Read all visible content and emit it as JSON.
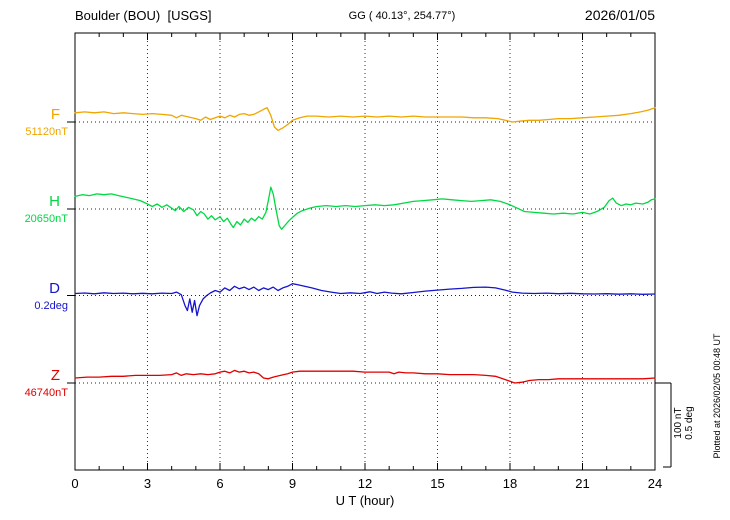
{
  "header": {
    "title": "Boulder (BOU)  [USGS]",
    "coords": "GG ( 40.13°, 254.77°)",
    "date": "2026/01/05"
  },
  "footer": {
    "plotted_at": "Plotted at 2026/02/05 00:48 UT"
  },
  "chart_data": {
    "type": "line",
    "title": "Boulder (BOU) [USGS] magnetogram",
    "xlabel": "U T (hour)",
    "xlim": [
      0,
      24
    ],
    "xticks": [
      0,
      3,
      6,
      9,
      12,
      15,
      18,
      21,
      24
    ],
    "grid": "dotted-vertical-at-xticks",
    "legend_position": "left-of-traces",
    "scale_bar": {
      "label_nT": "100 nT",
      "label_deg": "0.5 deg",
      "nT": 100,
      "deg": 0.5
    },
    "series": [
      {
        "name": "F",
        "baseline_label": "51120nT",
        "baseline_value": 51120,
        "units": "nT",
        "color": "#f0a500",
        "points": [
          [
            0,
            11
          ],
          [
            0.4,
            12
          ],
          [
            0.8,
            11
          ],
          [
            1.2,
            12
          ],
          [
            1.6,
            10
          ],
          [
            2,
            11
          ],
          [
            2.4,
            10
          ],
          [
            2.8,
            9
          ],
          [
            3.2,
            10
          ],
          [
            3.6,
            9
          ],
          [
            4,
            8
          ],
          [
            4.2,
            5
          ],
          [
            4.4,
            8
          ],
          [
            4.7,
            6
          ],
          [
            5,
            4
          ],
          [
            5.2,
            2
          ],
          [
            5.4,
            6
          ],
          [
            5.6,
            3
          ],
          [
            5.8,
            5
          ],
          [
            6,
            7
          ],
          [
            6.2,
            5
          ],
          [
            6.4,
            8
          ],
          [
            6.6,
            6
          ],
          [
            6.8,
            9
          ],
          [
            7,
            10
          ],
          [
            7.2,
            8
          ],
          [
            7.4,
            9
          ],
          [
            7.6,
            12
          ],
          [
            7.8,
            15
          ],
          [
            7.95,
            17
          ],
          [
            8.1,
            8
          ],
          [
            8.25,
            -6
          ],
          [
            8.4,
            -10
          ],
          [
            8.6,
            -7
          ],
          [
            8.8,
            -3
          ],
          [
            9,
            2
          ],
          [
            9.3,
            5
          ],
          [
            9.6,
            7
          ],
          [
            10,
            7
          ],
          [
            10.5,
            6
          ],
          [
            11,
            7
          ],
          [
            11.5,
            6
          ],
          [
            12,
            7
          ],
          [
            12.5,
            6
          ],
          [
            13,
            7
          ],
          [
            13.5,
            6
          ],
          [
            14,
            7
          ],
          [
            14.5,
            6
          ],
          [
            15,
            6
          ],
          [
            15.5,
            6
          ],
          [
            16,
            6
          ],
          [
            16.5,
            5
          ],
          [
            17,
            5
          ],
          [
            17.5,
            4
          ],
          [
            17.8,
            2
          ],
          [
            18.1,
            0
          ],
          [
            18.4,
            1
          ],
          [
            18.8,
            2
          ],
          [
            19.2,
            2
          ],
          [
            19.6,
            3
          ],
          [
            20,
            4
          ],
          [
            20.5,
            4
          ],
          [
            21,
            5
          ],
          [
            21.5,
            6
          ],
          [
            22,
            7
          ],
          [
            22.5,
            8
          ],
          [
            23,
            10
          ],
          [
            23.4,
            12
          ],
          [
            23.7,
            14
          ],
          [
            24,
            17
          ]
        ]
      },
      {
        "name": "H",
        "baseline_label": "20650nT",
        "baseline_value": 20650,
        "units": "nT",
        "color": "#00d944",
        "points": [
          [
            0,
            15
          ],
          [
            0.3,
            17
          ],
          [
            0.6,
            16
          ],
          [
            0.9,
            18
          ],
          [
            1.2,
            17
          ],
          [
            1.5,
            18
          ],
          [
            1.8,
            16
          ],
          [
            2.1,
            14
          ],
          [
            2.4,
            12
          ],
          [
            2.7,
            10
          ],
          [
            3,
            6
          ],
          [
            3.2,
            3
          ],
          [
            3.4,
            6
          ],
          [
            3.6,
            2
          ],
          [
            3.8,
            5
          ],
          [
            4,
            1
          ],
          [
            4.15,
            -2
          ],
          [
            4.3,
            3
          ],
          [
            4.5,
            -3
          ],
          [
            4.7,
            2
          ],
          [
            4.9,
            -1
          ],
          [
            5.05,
            -8
          ],
          [
            5.2,
            -3
          ],
          [
            5.35,
            -6
          ],
          [
            5.5,
            -12
          ],
          [
            5.65,
            -8
          ],
          [
            5.8,
            -13
          ],
          [
            6,
            -9
          ],
          [
            6.15,
            -15
          ],
          [
            6.3,
            -11
          ],
          [
            6.45,
            -18
          ],
          [
            6.55,
            -22
          ],
          [
            6.7,
            -15
          ],
          [
            6.85,
            -19
          ],
          [
            7,
            -12
          ],
          [
            7.15,
            -16
          ],
          [
            7.3,
            -11
          ],
          [
            7.45,
            -14
          ],
          [
            7.6,
            -9
          ],
          [
            7.75,
            -12
          ],
          [
            7.9,
            -4
          ],
          [
            8,
            10
          ],
          [
            8.1,
            26
          ],
          [
            8.2,
            18
          ],
          [
            8.3,
            2
          ],
          [
            8.45,
            -20
          ],
          [
            8.55,
            -24
          ],
          [
            8.7,
            -19
          ],
          [
            8.85,
            -14
          ],
          [
            9,
            -10
          ],
          [
            9.2,
            -5
          ],
          [
            9.4,
            -2
          ],
          [
            9.7,
            1
          ],
          [
            10,
            3
          ],
          [
            10.4,
            4
          ],
          [
            10.8,
            3
          ],
          [
            11.2,
            4
          ],
          [
            11.6,
            3
          ],
          [
            12,
            4
          ],
          [
            12.4,
            5
          ],
          [
            12.8,
            4
          ],
          [
            13.2,
            5
          ],
          [
            13.6,
            7
          ],
          [
            14,
            9
          ],
          [
            14.4,
            10
          ],
          [
            14.8,
            11
          ],
          [
            15.2,
            12
          ],
          [
            15.6,
            11
          ],
          [
            16,
            10
          ],
          [
            16.4,
            9
          ],
          [
            16.8,
            10
          ],
          [
            17.2,
            11
          ],
          [
            17.6,
            9
          ],
          [
            18,
            5
          ],
          [
            18.3,
            1
          ],
          [
            18.6,
            -3
          ],
          [
            19,
            -4
          ],
          [
            19.4,
            -5
          ],
          [
            19.8,
            -6
          ],
          [
            20.2,
            -5
          ],
          [
            20.6,
            -6
          ],
          [
            21,
            -4
          ],
          [
            21.3,
            -6
          ],
          [
            21.6,
            -3
          ],
          [
            21.9,
            2
          ],
          [
            22.1,
            10
          ],
          [
            22.25,
            13
          ],
          [
            22.4,
            7
          ],
          [
            22.6,
            4
          ],
          [
            22.8,
            6
          ],
          [
            23,
            5
          ],
          [
            23.2,
            7
          ],
          [
            23.5,
            6
          ],
          [
            23.7,
            8
          ],
          [
            23.85,
            11
          ],
          [
            24,
            12
          ]
        ]
      },
      {
        "name": "D",
        "baseline_label": "0.2deg",
        "baseline_value": 0.2,
        "units": "deg",
        "color": "#1515cc",
        "points": [
          [
            0,
            0.012
          ],
          [
            0.4,
            0.015
          ],
          [
            0.8,
            0.01
          ],
          [
            1.2,
            0.016
          ],
          [
            1.6,
            0.012
          ],
          [
            2,
            0.014
          ],
          [
            2.4,
            0.01
          ],
          [
            2.8,
            0.013
          ],
          [
            3.2,
            0.01
          ],
          [
            3.6,
            0.014
          ],
          [
            4,
            0.012
          ],
          [
            4.2,
            0.02
          ],
          [
            4.4,
            0.005
          ],
          [
            4.55,
            -0.06
          ],
          [
            4.65,
            -0.09
          ],
          [
            4.75,
            -0.02
          ],
          [
            4.85,
            -0.1
          ],
          [
            4.95,
            -0.03
          ],
          [
            5.05,
            -0.12
          ],
          [
            5.15,
            -0.06
          ],
          [
            5.3,
            -0.02
          ],
          [
            5.45,
            0
          ],
          [
            5.6,
            0.015
          ],
          [
            5.8,
            0.03
          ],
          [
            6,
            0.02
          ],
          [
            6.2,
            0.045
          ],
          [
            6.4,
            0.03
          ],
          [
            6.6,
            0.055
          ],
          [
            6.8,
            0.04
          ],
          [
            7,
            0.05
          ],
          [
            7.2,
            0.035
          ],
          [
            7.4,
            0.05
          ],
          [
            7.6,
            0.03
          ],
          [
            7.8,
            0.045
          ],
          [
            8,
            0.035
          ],
          [
            8.2,
            0.05
          ],
          [
            8.4,
            0.03
          ],
          [
            8.6,
            0.045
          ],
          [
            8.8,
            0.055
          ],
          [
            9,
            0.07
          ],
          [
            9.2,
            0.065
          ],
          [
            9.5,
            0.055
          ],
          [
            9.8,
            0.045
          ],
          [
            10.2,
            0.03
          ],
          [
            10.6,
            0.02
          ],
          [
            11,
            0.012
          ],
          [
            11.4,
            0.016
          ],
          [
            11.8,
            0.012
          ],
          [
            12.2,
            0.022
          ],
          [
            12.5,
            0.012
          ],
          [
            12.8,
            0.02
          ],
          [
            13.1,
            0.014
          ],
          [
            13.5,
            0.01
          ],
          [
            14,
            0.018
          ],
          [
            14.5,
            0.026
          ],
          [
            15,
            0.032
          ],
          [
            15.5,
            0.038
          ],
          [
            16,
            0.042
          ],
          [
            16.5,
            0.048
          ],
          [
            17,
            0.05
          ],
          [
            17.4,
            0.045
          ],
          [
            17.8,
            0.032
          ],
          [
            18.1,
            0.02
          ],
          [
            18.5,
            0.014
          ],
          [
            19,
            0.012
          ],
          [
            19.5,
            0.014
          ],
          [
            20,
            0.011
          ],
          [
            20.5,
            0.013
          ],
          [
            21,
            0.01
          ],
          [
            21.5,
            0.009
          ],
          [
            22,
            0.011
          ],
          [
            22.5,
            0.008
          ],
          [
            23,
            0.01
          ],
          [
            23.5,
            0.007
          ],
          [
            24,
            0.009
          ]
        ]
      },
      {
        "name": "Z",
        "baseline_label": "46740nT",
        "baseline_value": 46740,
        "units": "nT",
        "color": "#e00000",
        "points": [
          [
            0,
            6
          ],
          [
            0.5,
            7
          ],
          [
            1,
            7
          ],
          [
            1.5,
            8
          ],
          [
            2,
            8
          ],
          [
            2.5,
            9
          ],
          [
            3,
            9
          ],
          [
            3.5,
            9
          ],
          [
            4,
            10
          ],
          [
            4.2,
            12
          ],
          [
            4.4,
            9
          ],
          [
            4.6,
            11
          ],
          [
            4.9,
            10
          ],
          [
            5.2,
            11
          ],
          [
            5.5,
            10
          ],
          [
            5.8,
            11
          ],
          [
            6,
            13
          ],
          [
            6.2,
            14
          ],
          [
            6.4,
            12
          ],
          [
            6.6,
            15
          ],
          [
            6.8,
            13
          ],
          [
            7,
            14
          ],
          [
            7.2,
            12
          ],
          [
            7.4,
            13
          ],
          [
            7.6,
            11
          ],
          [
            7.8,
            6
          ],
          [
            8,
            5
          ],
          [
            8.2,
            7
          ],
          [
            8.5,
            9
          ],
          [
            8.8,
            11
          ],
          [
            9,
            13
          ],
          [
            9.3,
            14
          ],
          [
            9.6,
            14
          ],
          [
            10,
            14
          ],
          [
            10.5,
            14
          ],
          [
            11,
            14
          ],
          [
            11.5,
            14
          ],
          [
            12,
            13
          ],
          [
            12.5,
            13
          ],
          [
            13,
            13
          ],
          [
            13.2,
            11
          ],
          [
            13.4,
            13
          ],
          [
            13.7,
            12
          ],
          [
            14,
            12
          ],
          [
            14.5,
            11
          ],
          [
            15,
            11
          ],
          [
            15.5,
            10
          ],
          [
            16,
            10
          ],
          [
            16.5,
            10
          ],
          [
            17,
            9
          ],
          [
            17.4,
            8
          ],
          [
            17.7,
            5
          ],
          [
            18,
            2
          ],
          [
            18.2,
            0
          ],
          [
            18.5,
            1
          ],
          [
            18.8,
            3
          ],
          [
            19.2,
            4
          ],
          [
            19.6,
            4
          ],
          [
            20,
            5
          ],
          [
            20.5,
            5
          ],
          [
            21,
            5
          ],
          [
            21.5,
            5
          ],
          [
            22,
            5
          ],
          [
            22.5,
            5
          ],
          [
            23,
            5
          ],
          [
            23.5,
            5
          ],
          [
            24,
            6
          ]
        ]
      }
    ]
  }
}
